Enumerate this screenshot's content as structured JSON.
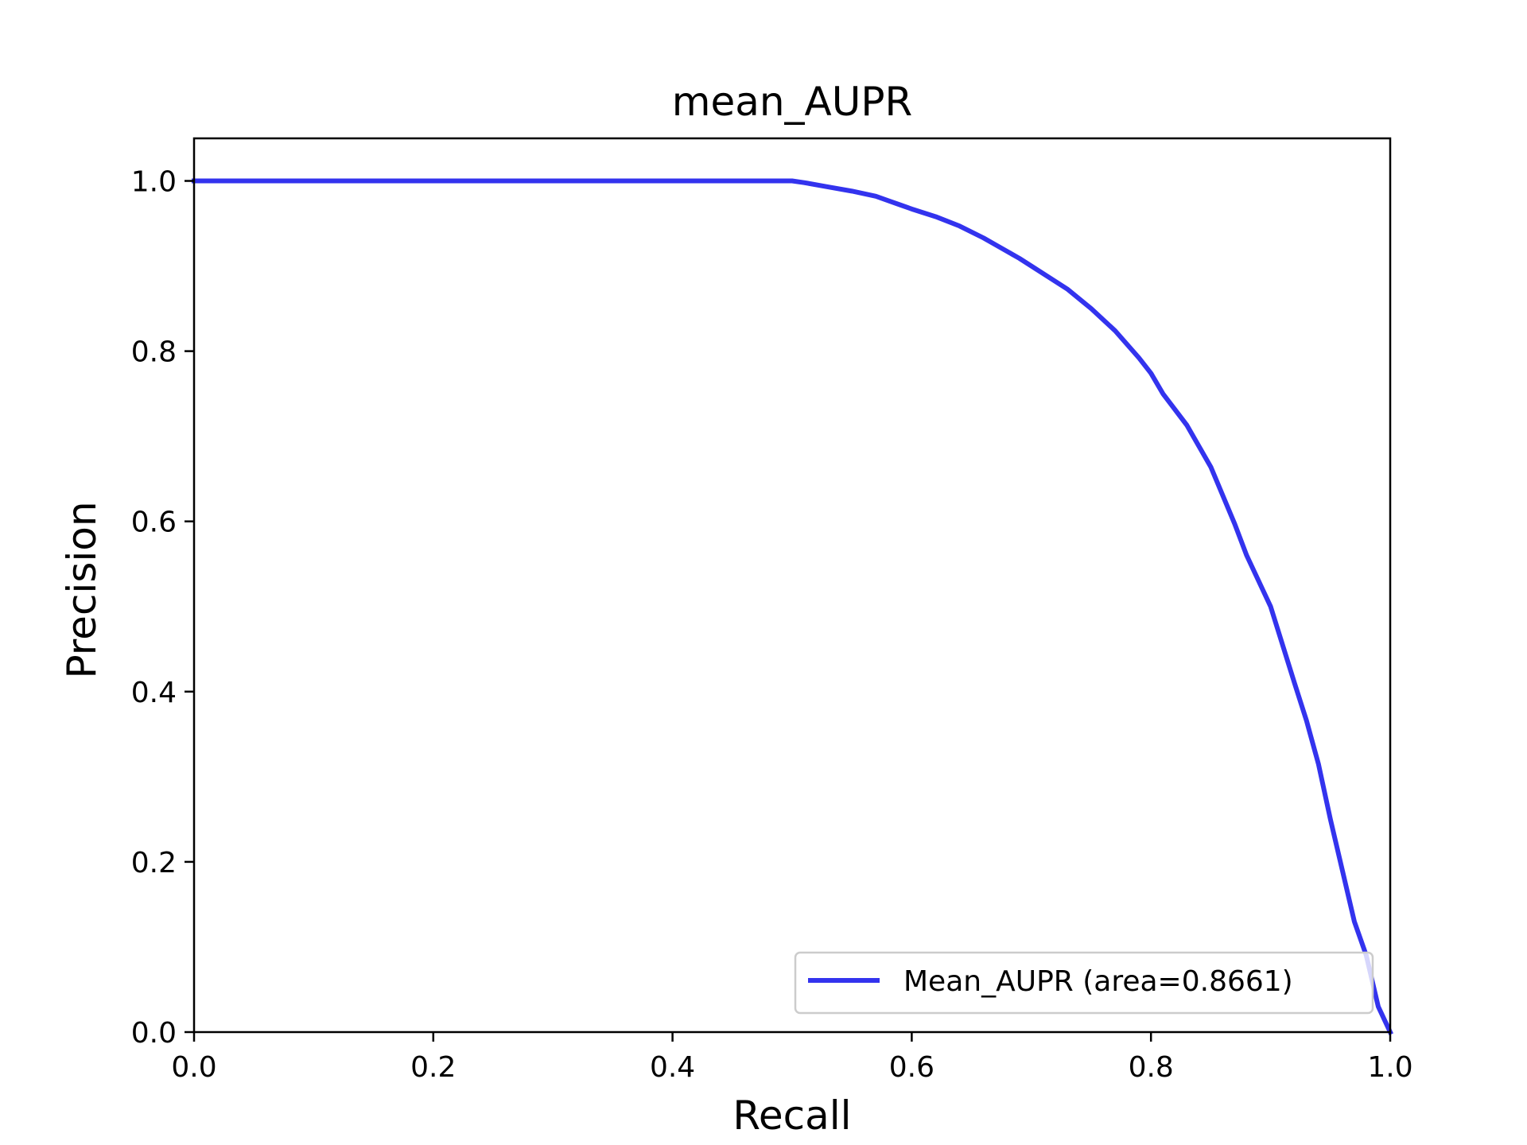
{
  "chart_data": {
    "type": "line",
    "title": "mean_AUPR",
    "xlabel": "Recall",
    "ylabel": "Precision",
    "xlim": [
      0.0,
      1.0
    ],
    "ylim": [
      0.0,
      1.05
    ],
    "xticks": [
      "0.0",
      "0.2",
      "0.4",
      "0.6",
      "0.8",
      "1.0"
    ],
    "yticks": [
      "0.0",
      "0.2",
      "0.4",
      "0.6",
      "0.8",
      "1.0"
    ],
    "grid": false,
    "legend_position": "lower right",
    "series": [
      {
        "name": "Mean_AUPR (area=0.8661)",
        "color": "#3333ee",
        "x": [
          0.0,
          0.1,
          0.2,
          0.3,
          0.4,
          0.5,
          0.51,
          0.53,
          0.55,
          0.57,
          0.58,
          0.59,
          0.6,
          0.62,
          0.64,
          0.66,
          0.67,
          0.69,
          0.7,
          0.73,
          0.75,
          0.77,
          0.79,
          0.8,
          0.81,
          0.83,
          0.85,
          0.87,
          0.88,
          0.9,
          0.92,
          0.93,
          0.94,
          0.95,
          0.96,
          0.97,
          0.98,
          0.99,
          1.0
        ],
        "y": [
          1.0,
          1.0,
          1.0,
          1.0,
          1.0,
          1.0,
          0.998,
          0.993,
          0.988,
          0.982,
          0.977,
          0.972,
          0.967,
          0.958,
          0.947,
          0.933,
          0.925,
          0.909,
          0.9,
          0.873,
          0.85,
          0.824,
          0.792,
          0.774,
          0.75,
          0.713,
          0.664,
          0.597,
          0.56,
          0.5,
          0.41,
          0.366,
          0.315,
          0.25,
          0.19,
          0.13,
          0.09,
          0.03,
          0.0
        ]
      }
    ]
  }
}
